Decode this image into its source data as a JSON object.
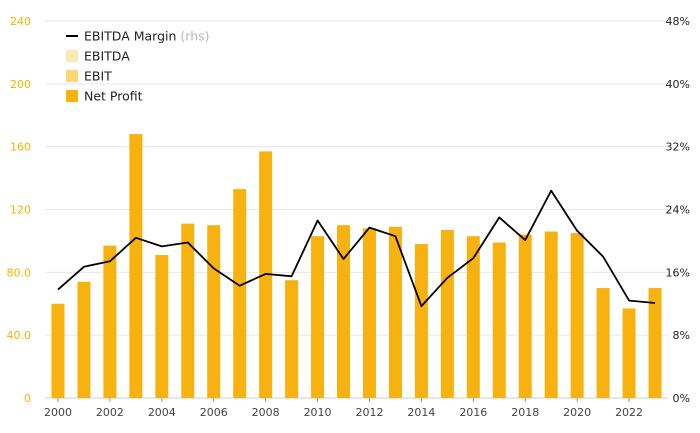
{
  "chart_data": {
    "type": "bar",
    "categories": [
      2000,
      2001,
      2002,
      2003,
      2004,
      2005,
      2006,
      2007,
      2008,
      2009,
      2010,
      2011,
      2012,
      2013,
      2014,
      2015,
      2016,
      2017,
      2018,
      2019,
      2020,
      2021,
      2022,
      2023
    ],
    "x_tick_labels": [
      "2000",
      "2002",
      "2004",
      "2006",
      "2008",
      "2010",
      "2012",
      "2014",
      "2016",
      "2018",
      "2020",
      "2022"
    ],
    "y_left": {
      "ylim": [
        0,
        240
      ],
      "ticks": [
        "0",
        "40.0",
        "80.0",
        "120",
        "160",
        "200",
        "240"
      ]
    },
    "y_right": {
      "ylim": [
        0,
        48
      ],
      "ticks": [
        "0%",
        "8%",
        "16%",
        "24%",
        "32%",
        "40%",
        "48%"
      ]
    },
    "legend": {
      "position": "top-left",
      "entries": [
        {
          "key": "ebitda_margin",
          "label": "EBITDA Margin",
          "suffix": "(rhs)",
          "kind": "line",
          "color": "#000000"
        },
        {
          "key": "ebitda",
          "label": "EBITDA",
          "kind": "bar",
          "color": "#fde9b8"
        },
        {
          "key": "ebit",
          "label": "EBIT",
          "kind": "bar",
          "color": "#fcd675"
        },
        {
          "key": "net_profit",
          "label": "Net Profit",
          "kind": "bar",
          "color": "#f7b20f"
        }
      ]
    },
    "series": [
      {
        "name": "Net Profit",
        "axis": "left",
        "values": [
          60,
          74,
          97,
          168,
          91,
          111,
          110,
          133,
          157,
          75,
          103,
          110,
          108,
          109,
          98,
          107,
          103,
          99,
          104,
          106,
          105,
          70,
          57,
          70
        ]
      },
      {
        "name": "EBITDA Margin",
        "axis": "right",
        "values": [
          13.8,
          16.7,
          17.4,
          20.4,
          19.3,
          19.8,
          16.5,
          14.3,
          15.8,
          15.5,
          22.6,
          17.7,
          21.7,
          20.6,
          11.7,
          15.3,
          17.8,
          23.0,
          20.1,
          26.4,
          21.3,
          18.0,
          12.4,
          12.1
        ]
      }
    ],
    "grid": true,
    "colors": {
      "bar": "#f7b20f",
      "line": "#000000",
      "grid": "#e6e6e6",
      "left_axis_text": "#f0b400"
    }
  }
}
